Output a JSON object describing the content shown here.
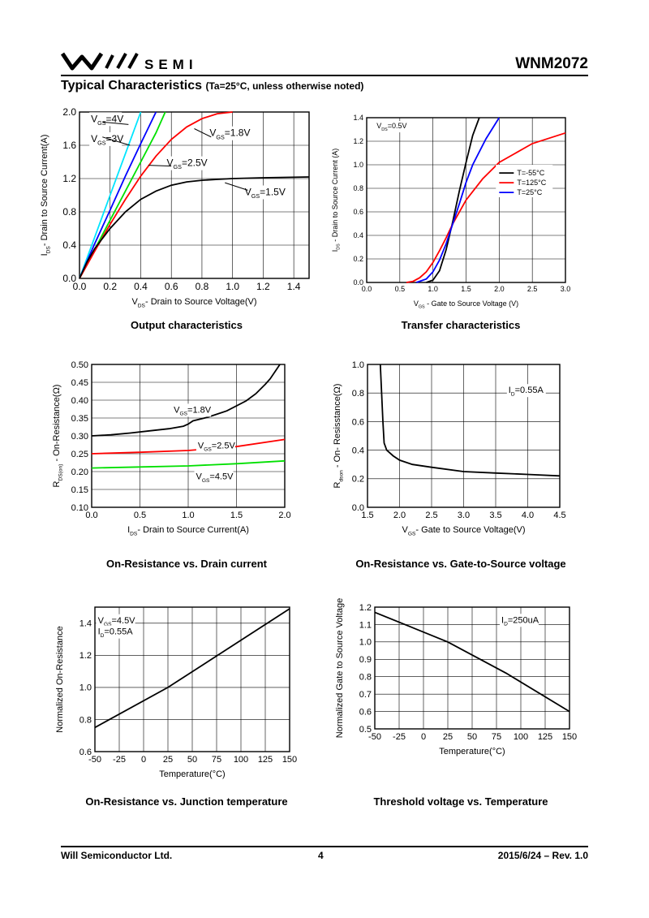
{
  "header": {
    "brand": "SEMI",
    "part_number": "WNM2072"
  },
  "section": {
    "title": "Typical Characteristics",
    "condition": "(Ta=25°C, unless otherwise noted)"
  },
  "footer": {
    "company": "Will Semiconductor Ltd.",
    "page": "4",
    "date_rev": "2015/6/24 – Rev. 1.0"
  },
  "captions": {
    "c1": "Output characteristics",
    "c2": "Transfer characteristics",
    "c3": "On-Resistance vs. Drain current",
    "c4": "On-Resistance vs. Gate-to-Source voltage",
    "c5": "On-Resistance vs. Junction temperature",
    "c6": "Threshold voltage vs. Temperature"
  },
  "chart_data": [
    {
      "id": "c1",
      "type": "line",
      "xlabel": "VDS- Drain to Source Voltage(V)",
      "ylabel": "IDS- Drain to Source Current(A)",
      "xlim": [
        0,
        1.5
      ],
      "ylim": [
        0,
        2.0
      ],
      "xticks": [
        "0.0",
        "0.2",
        "0.4",
        "0.6",
        "0.8",
        "1.0",
        "1.2",
        "1.4"
      ],
      "yticks": [
        "0.0",
        "0.4",
        "0.8",
        "1.2",
        "1.6",
        "2.0"
      ],
      "series": [
        {
          "name": "VGS=4V",
          "color": "#00e5ff",
          "x": [
            0,
            0.1,
            0.2,
            0.3,
            0.4
          ],
          "y": [
            0,
            0.5,
            1.0,
            1.5,
            2.0
          ]
        },
        {
          "name": "VGS=3V",
          "color": "#0000ff",
          "x": [
            0,
            0.1,
            0.2,
            0.3,
            0.4,
            0.5
          ],
          "y": [
            0,
            0.42,
            0.82,
            1.23,
            1.62,
            2.0
          ]
        },
        {
          "name": "VGS=2.5V",
          "color": "#00e000",
          "x": [
            0,
            0.1,
            0.2,
            0.3,
            0.4,
            0.5,
            0.56
          ],
          "y": [
            0,
            0.35,
            0.7,
            1.05,
            1.4,
            1.75,
            2.0
          ]
        },
        {
          "name": "VGS=1.8V",
          "color": "#ff0000",
          "x": [
            0,
            0.1,
            0.2,
            0.3,
            0.4,
            0.5,
            0.6,
            0.7,
            0.8,
            0.9,
            1.0
          ],
          "y": [
            0,
            0.33,
            0.65,
            0.95,
            1.23,
            1.47,
            1.67,
            1.82,
            1.92,
            1.98,
            2.0
          ]
        },
        {
          "name": "VGS=1.5V",
          "color": "#000000",
          "x": [
            0,
            0.05,
            0.1,
            0.2,
            0.3,
            0.4,
            0.5,
            0.6,
            0.7,
            0.8,
            0.9,
            1.0,
            1.2,
            1.5
          ],
          "y": [
            0,
            0.2,
            0.36,
            0.6,
            0.8,
            0.95,
            1.05,
            1.12,
            1.16,
            1.18,
            1.19,
            1.2,
            1.21,
            1.22
          ]
        }
      ],
      "annotations": [
        "VGS=4V",
        "VGS=3V",
        "VGS=2.5V",
        "VGS=1.8V",
        "VGS=1.5V"
      ]
    },
    {
      "id": "c2",
      "type": "line",
      "xlabel": "VGS - Gate to Source Voltage (V)",
      "ylabel": "IDS - Drain to Source Current (A)",
      "xlim": [
        0,
        3.0
      ],
      "ylim": [
        0,
        1.4
      ],
      "xticks": [
        "0.0",
        "0.5",
        "1.0",
        "1.5",
        "2.0",
        "2.5",
        "3.0"
      ],
      "yticks": [
        "0.0",
        "0.2",
        "0.4",
        "0.6",
        "0.8",
        "1.0",
        "1.2",
        "1.4"
      ],
      "series": [
        {
          "name": "T=-55°C",
          "color": "#000000",
          "x": [
            0.9,
            1.0,
            1.1,
            1.2,
            1.3,
            1.4,
            1.5,
            1.6,
            1.7
          ],
          "y": [
            0,
            0.02,
            0.1,
            0.28,
            0.52,
            0.78,
            1.02,
            1.25,
            1.4
          ]
        },
        {
          "name": "T=125°C",
          "color": "#ff0000",
          "x": [
            0.6,
            0.7,
            0.8,
            0.9,
            1.0,
            1.1,
            1.2,
            1.3,
            1.5,
            1.75,
            2.0,
            2.5,
            3.0
          ],
          "y": [
            0,
            0.01,
            0.04,
            0.09,
            0.17,
            0.27,
            0.38,
            0.5,
            0.7,
            0.88,
            1.02,
            1.18,
            1.27
          ]
        },
        {
          "name": "T=25°C",
          "color": "#0000ff",
          "x": [
            0.75,
            0.9,
            1.0,
            1.1,
            1.2,
            1.3,
            1.4,
            1.5,
            1.6,
            1.8,
            2.0
          ],
          "y": [
            0,
            0.03,
            0.09,
            0.19,
            0.33,
            0.5,
            0.67,
            0.85,
            1.0,
            1.22,
            1.4
          ]
        }
      ],
      "annotations": [
        "VDS=0.5V"
      ]
    },
    {
      "id": "c3",
      "type": "line",
      "xlabel": "IDS- Drain to Source Current(A)",
      "ylabel": "RDS(on) - On-Resistance(Ω)",
      "xlim": [
        0,
        2.0
      ],
      "ylim": [
        0.1,
        0.5
      ],
      "xticks": [
        "0.0",
        "0.5",
        "1.0",
        "1.5",
        "2.0"
      ],
      "yticks": [
        "0.10",
        "0.15",
        "0.20",
        "0.25",
        "0.30",
        "0.35",
        "0.40",
        "0.45",
        "0.50"
      ],
      "series": [
        {
          "name": "VGS=1.8V",
          "color": "#000000",
          "x": [
            0,
            0.2,
            0.4,
            0.6,
            0.8,
            0.95,
            1.0,
            1.05,
            1.2,
            1.4,
            1.6,
            1.7,
            1.8,
            1.85,
            1.9,
            1.95
          ],
          "y": [
            0.3,
            0.303,
            0.308,
            0.314,
            0.32,
            0.327,
            0.333,
            0.342,
            0.352,
            0.37,
            0.398,
            0.418,
            0.445,
            0.46,
            0.48,
            0.5
          ]
        },
        {
          "name": "VGS=2.5V",
          "color": "#ff0000",
          "x": [
            0,
            0.5,
            1.0,
            1.5,
            2.0
          ],
          "y": [
            0.25,
            0.254,
            0.259,
            0.27,
            0.29
          ]
        },
        {
          "name": "VGS=4.5V",
          "color": "#00e000",
          "x": [
            0,
            0.5,
            1.0,
            1.5,
            2.0
          ],
          "y": [
            0.21,
            0.213,
            0.216,
            0.222,
            0.23
          ]
        }
      ],
      "annotations": [
        "VGS=1.8V",
        "VGS=2.5V",
        "VGS=4.5V"
      ]
    },
    {
      "id": "c4",
      "type": "line",
      "xlabel": "VGS- Gate to Source Voltage(V)",
      "ylabel": "Rdson - On- Resisstance(Ω)",
      "xlim": [
        1.5,
        4.5
      ],
      "ylim": [
        0.0,
        1.0
      ],
      "xticks": [
        "1.5",
        "2.0",
        "2.5",
        "3.0",
        "3.5",
        "4.0",
        "4.5"
      ],
      "yticks": [
        "0.0",
        "0.2",
        "0.4",
        "0.6",
        "0.8",
        "1.0"
      ],
      "series": [
        {
          "name": "ID=0.55A",
          "color": "#000000",
          "x": [
            1.7,
            1.72,
            1.74,
            1.76,
            1.8,
            1.9,
            2.0,
            2.2,
            2.5,
            3.0,
            3.5,
            4.0,
            4.5
          ],
          "y": [
            1.0,
            0.8,
            0.6,
            0.45,
            0.4,
            0.36,
            0.33,
            0.3,
            0.28,
            0.25,
            0.24,
            0.23,
            0.22
          ]
        }
      ],
      "annotations": [
        "ID=0.55A"
      ]
    },
    {
      "id": "c5",
      "type": "line",
      "xlabel": "Temperature(°C)",
      "ylabel": "Normalized On-Resistance",
      "xlim": [
        -50,
        150
      ],
      "ylim": [
        0.6,
        1.5
      ],
      "xticks": [
        "-50",
        "-25",
        "0",
        "25",
        "50",
        "75",
        "100",
        "125",
        "150"
      ],
      "yticks": [
        "0.6",
        "0.8",
        "1.0",
        "1.2",
        "1.4"
      ],
      "series": [
        {
          "name": "VGS=4.5V, ID=0.55A",
          "color": "#000000",
          "x": [
            -50,
            25,
            150
          ],
          "y": [
            0.75,
            1.0,
            1.49
          ]
        }
      ],
      "annotations": [
        "VGS=4.5V",
        "ID=0.55A"
      ]
    },
    {
      "id": "c6",
      "type": "line",
      "xlabel": "Temperature(°C)",
      "ylabel": "Normalized Gate to Source Voltage",
      "xlim": [
        -50,
        150
      ],
      "ylim": [
        0.5,
        1.2
      ],
      "xticks": [
        "-50",
        "-25",
        "0",
        "25",
        "50",
        "75",
        "100",
        "125",
        "150"
      ],
      "yticks": [
        "0.5",
        "0.6",
        "0.7",
        "0.8",
        "0.9",
        "1.0",
        "1.1",
        "1.2"
      ],
      "series": [
        {
          "name": "ID=250uA",
          "color": "#000000",
          "x": [
            -50,
            25,
            85,
            150
          ],
          "y": [
            1.17,
            1.0,
            0.82,
            0.6
          ]
        }
      ],
      "annotations": [
        "ID=250uA"
      ]
    }
  ]
}
